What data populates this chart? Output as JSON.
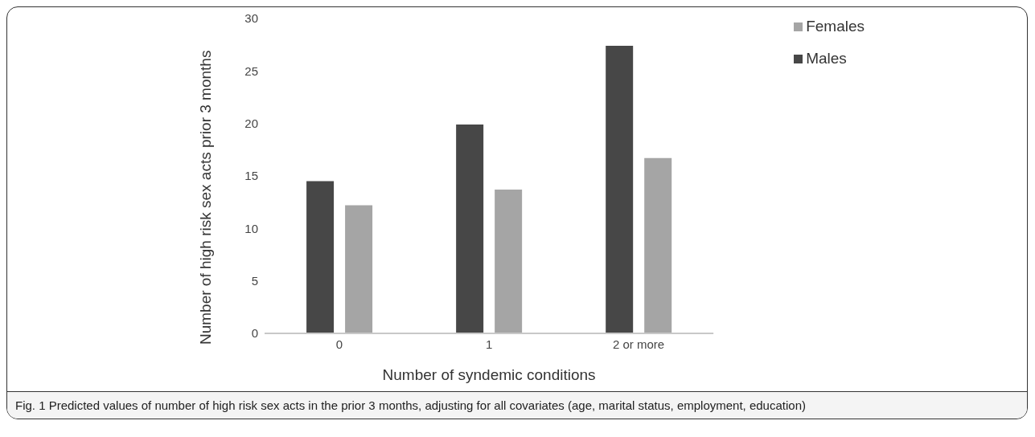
{
  "chart_data": {
    "type": "bar",
    "xlabel": "Number of syndemic conditions",
    "ylabel": "Number of high risk sex acts prior 3 months",
    "categories": [
      "0",
      "1",
      "2 or more"
    ],
    "series": [
      {
        "name": "Males",
        "color": "#474747",
        "values": [
          14.5,
          19.9,
          27.4
        ]
      },
      {
        "name": "Females",
        "color": "#a5a5a5",
        "values": [
          12.2,
          13.7,
          16.7
        ]
      }
    ],
    "ylim": [
      0,
      30
    ],
    "yticks": [
      0,
      5,
      10,
      15,
      20,
      25,
      30
    ],
    "grid": false,
    "legend": "top right",
    "annotations": [
      "Fig. 1 Predicted values of number of high risk sex acts in the prior 3 months, adjusting for all covariates (age, marital status, employment, education)"
    ]
  }
}
